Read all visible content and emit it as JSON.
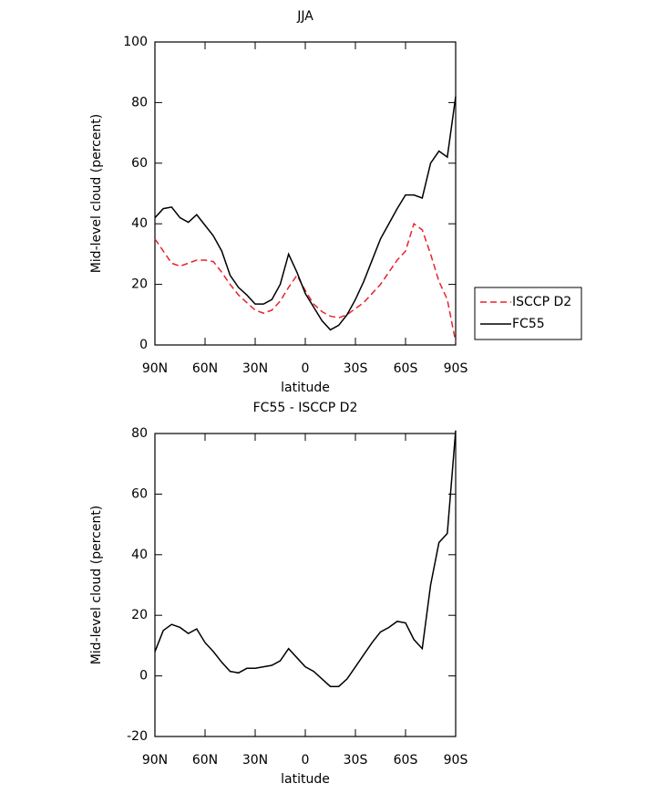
{
  "chart_data": [
    {
      "type": "line",
      "title": "JJA",
      "x_label": "latitude",
      "y_label": "Mid-level cloud (percent)",
      "x": [
        90,
        85,
        80,
        75,
        70,
        65,
        60,
        55,
        50,
        45,
        40,
        35,
        30,
        25,
        20,
        15,
        10,
        5,
        0,
        -5,
        -10,
        -15,
        -20,
        -25,
        -30,
        -35,
        -40,
        -45,
        -50,
        -55,
        -60,
        -65,
        -70,
        -75,
        -80,
        -85,
        -90
      ],
      "series": [
        {
          "name": "ISCCP D2",
          "color": "#e8232b",
          "line_style": "dashed",
          "values": [
            35,
            31,
            27,
            26,
            27,
            28,
            28,
            27.5,
            24,
            20,
            16.5,
            14,
            11.5,
            10.5,
            11.5,
            14.5,
            19,
            23,
            18,
            13.5,
            11,
            9.5,
            9,
            10,
            12,
            14,
            17,
            20,
            24,
            28,
            31,
            40,
            38,
            30,
            21,
            15,
            1
          ]
        },
        {
          "name": "FC55",
          "color": "#000000",
          "line_style": "solid",
          "values": [
            42,
            45,
            45.5,
            42,
            40.5,
            43,
            39.5,
            36,
            31,
            23,
            19,
            16.5,
            13.5,
            13.5,
            15,
            20,
            30,
            24,
            17,
            12.5,
            8,
            5,
            6.5,
            10,
            15,
            21,
            28,
            35,
            40,
            45,
            49.5,
            49.5,
            48.5,
            60,
            64,
            62,
            82
          ]
        }
      ],
      "xlim": [
        90,
        -90
      ],
      "xticks": [
        {
          "value": 90,
          "label": "90N"
        },
        {
          "value": 60,
          "label": "60N"
        },
        {
          "value": 30,
          "label": "30N"
        },
        0,
        {
          "value": -30,
          "label": "30S"
        },
        {
          "value": -60,
          "label": "60S"
        },
        {
          "value": -90,
          "label": "90S"
        }
      ],
      "ylim": [
        0,
        100
      ],
      "yticks": [
        0,
        20,
        40,
        60,
        80,
        100
      ],
      "legend": "right"
    },
    {
      "type": "line",
      "title": "FC55 - ISCCP D2",
      "x_label": "latitude",
      "y_label": "Mid-level cloud (percent)",
      "x": [
        90,
        85,
        80,
        75,
        70,
        65,
        60,
        55,
        50,
        45,
        40,
        35,
        30,
        25,
        20,
        15,
        10,
        5,
        0,
        -5,
        -10,
        -15,
        -20,
        -25,
        -30,
        -35,
        -40,
        -45,
        -50,
        -55,
        -60,
        -65,
        -70,
        -75,
        -80,
        -85,
        -90
      ],
      "series": [
        {
          "name": null,
          "color": "#000000",
          "line_style": "solid",
          "values": [
            8,
            15,
            17,
            16,
            14,
            15.5,
            11,
            8,
            4.5,
            1.5,
            1,
            2.5,
            2.5,
            3,
            3.5,
            5,
            9,
            6,
            3,
            1.5,
            -1,
            -3.5,
            -3.5,
            -1,
            3,
            7,
            11,
            14.5,
            16,
            18,
            17.5,
            12,
            9,
            30,
            44,
            47,
            81
          ]
        }
      ],
      "xlim": [
        90,
        -90
      ],
      "xticks": [
        {
          "value": 90,
          "label": "90N"
        },
        {
          "value": 60,
          "label": "60N"
        },
        {
          "value": 30,
          "label": "30N"
        },
        0,
        {
          "value": -30,
          "label": "30S"
        },
        {
          "value": -60,
          "label": "60S"
        },
        {
          "value": -90,
          "label": "90S"
        }
      ],
      "ylim": [
        -20,
        80
      ],
      "yticks": [
        -20,
        0,
        20,
        40,
        60,
        80
      ]
    }
  ]
}
